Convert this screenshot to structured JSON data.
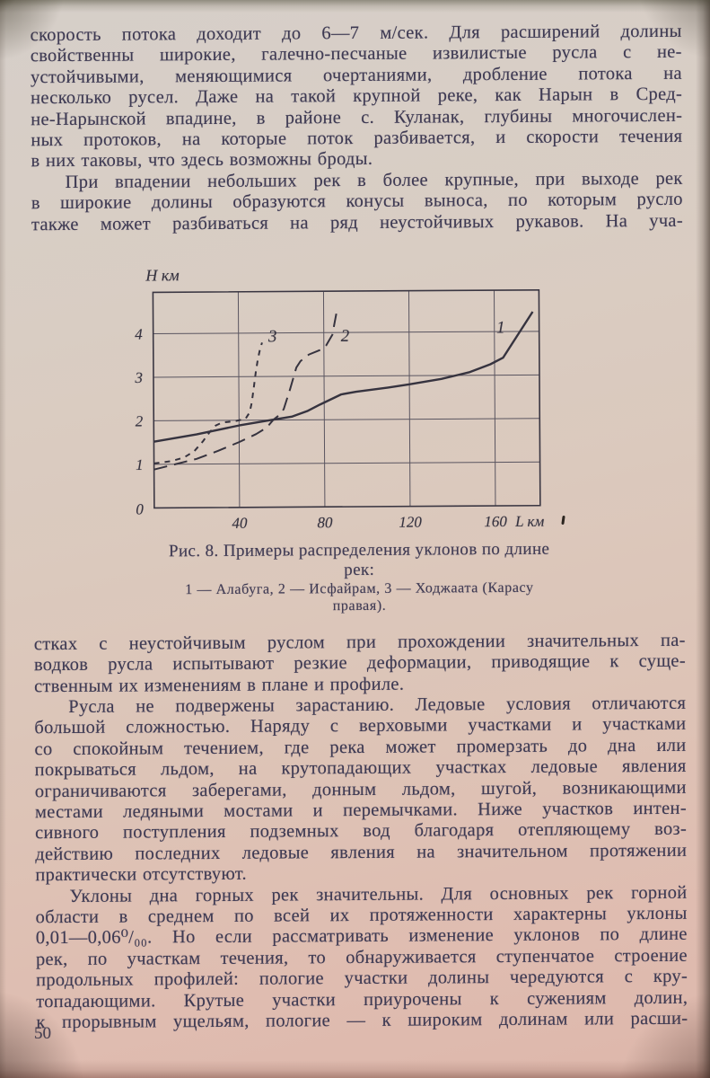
{
  "page": {
    "number": "50"
  },
  "paragraphs": [
    {
      "lines": [
        "скорость потока доходит до 6—7 м/сек. Для расширений долины",
        "свойственны широкие, галечно-песчаные извилистые русла с не-",
        "устойчивыми, меняющимися очертаниями, дробление потока на",
        "несколько русел. Даже на такой крупной реке, как Нарын в Сред-",
        "не-Нарынской впадине, в районе с. Куланак, глубины многочислен-",
        "ных протоков, на которые поток разбивается, и скорости течения",
        "в них таковы, что здесь возможны броды."
      ]
    },
    {
      "lines": [
        "При впадении небольших рек в более крупные, при выходе рек",
        "в широкие долины образуются конусы выноса, по которым русло",
        "также может разбиваться на ряд неустойчивых рукавов. На уча-"
      ]
    },
    {
      "lines": [
        "стках с неустойчивым руслом при прохождении значительных па-",
        "водков русла испытывают резкие деформации, приводящие к суще-",
        "ственным их изменениям в плане и профиле."
      ]
    },
    {
      "lines": [
        "Русла не подвержены зарастанию. Ледовые условия отличаются",
        "большой сложностью. Наряду с верховыми участками и участками",
        "со спокойным течением, где река может промерзать до дна или",
        "покрываться льдом, на крутопадающих участках ледовые явления",
        "ограничиваются заберегами, донным льдом, шугой, возникающими",
        "местами ледяными мостами и перемычками. Ниже участков интен-",
        "сивного поступления подземных вод благодаря отепляющему воз-",
        "действию последних ледовые явления на значительном протяжении",
        "практически отсутствуют."
      ]
    },
    {
      "lines": [
        "Уклоны дна горных рек значительны. Для основных рек горной",
        "области в среднем по всей их протяженности характерны уклоны",
        "0,01—0,06⁰/₀₀. Но если рассматривать изменение уклонов по длине",
        "рек, по участкам течения, то обнаруживается ступенчатое строение",
        "продольных профилей: пологие участки долины чередуются с кру-",
        "топадающими. Крутые участки приурочены к сужениям долин,",
        "к прорывным ущельям, пологие — к широким долинам или расши-"
      ]
    }
  ],
  "figure": {
    "caption_line1": "Рис. 8. Примеры распределения уклонов по длине",
    "caption_line2": "рек:",
    "legend_line1": "1 — Алабуга, 2 — Исфайрам, 3 — Ходжаата (Карасу",
    "legend_line2": "правая)."
  },
  "chart_data": {
    "type": "line",
    "title": "Рис. 8. Примеры распределения уклонов по длине рек",
    "xlabel": "L км",
    "ylabel": "Н км",
    "xlim": [
      0,
      181
    ],
    "ylim": [
      0,
      4.95
    ],
    "x_ticks": [
      40,
      80,
      120,
      160
    ],
    "y_ticks": [
      1,
      2,
      3,
      4
    ],
    "origin_label": "0",
    "grid": true,
    "ink_color": "#36333f",
    "series": [
      {
        "name": "1 — Алабуга",
        "style": "solid",
        "points": [
          [
            0,
            1.52
          ],
          [
            20,
            1.68
          ],
          [
            40,
            1.88
          ],
          [
            55,
            2.0
          ],
          [
            65,
            2.08
          ],
          [
            72,
            2.2
          ],
          [
            78,
            2.35
          ],
          [
            88,
            2.58
          ],
          [
            95,
            2.64
          ],
          [
            110,
            2.73
          ],
          [
            120,
            2.8
          ],
          [
            135,
            2.92
          ],
          [
            148,
            3.07
          ],
          [
            158,
            3.25
          ],
          [
            164,
            3.4
          ],
          [
            170,
            3.85
          ],
          [
            178,
            4.45
          ]
        ]
      },
      {
        "name": "2 — Исфайрам",
        "style": "long-dash",
        "points": [
          [
            0,
            0.88
          ],
          [
            10,
            1.0
          ],
          [
            20,
            1.12
          ],
          [
            30,
            1.3
          ],
          [
            40,
            1.5
          ],
          [
            48,
            1.68
          ],
          [
            53,
            1.83
          ],
          [
            56,
            2.0
          ],
          [
            59,
            2.12
          ],
          [
            61,
            2.25
          ],
          [
            64,
            2.7
          ],
          [
            67,
            3.2
          ],
          [
            69,
            3.35
          ],
          [
            73,
            3.5
          ],
          [
            78,
            3.6
          ],
          [
            81,
            3.7
          ],
          [
            84,
            3.95
          ],
          [
            85,
            4.2
          ],
          [
            86,
            4.45
          ]
        ]
      },
      {
        "name": "3 — Ходжаата (Карасу правая)",
        "style": "short-dash",
        "points": [
          [
            0,
            1.02
          ],
          [
            8,
            1.07
          ],
          [
            14,
            1.15
          ],
          [
            19,
            1.3
          ],
          [
            23,
            1.52
          ],
          [
            26,
            1.72
          ],
          [
            29,
            1.88
          ],
          [
            32,
            1.95
          ],
          [
            38,
            1.98
          ],
          [
            43,
            2.03
          ],
          [
            45,
            2.18
          ],
          [
            46,
            2.4
          ],
          [
            47,
            2.75
          ],
          [
            48,
            3.1
          ],
          [
            49,
            3.4
          ],
          [
            50,
            3.62
          ],
          [
            51,
            3.78
          ]
        ]
      }
    ],
    "annotations": [
      {
        "text": "1",
        "x": 165,
        "y": 3.97,
        "anchor": "end"
      },
      {
        "text": "2",
        "x": 88,
        "y": 3.8,
        "anchor": "start"
      },
      {
        "text": "3",
        "x": 54,
        "y": 3.8,
        "anchor": "start"
      }
    ]
  }
}
